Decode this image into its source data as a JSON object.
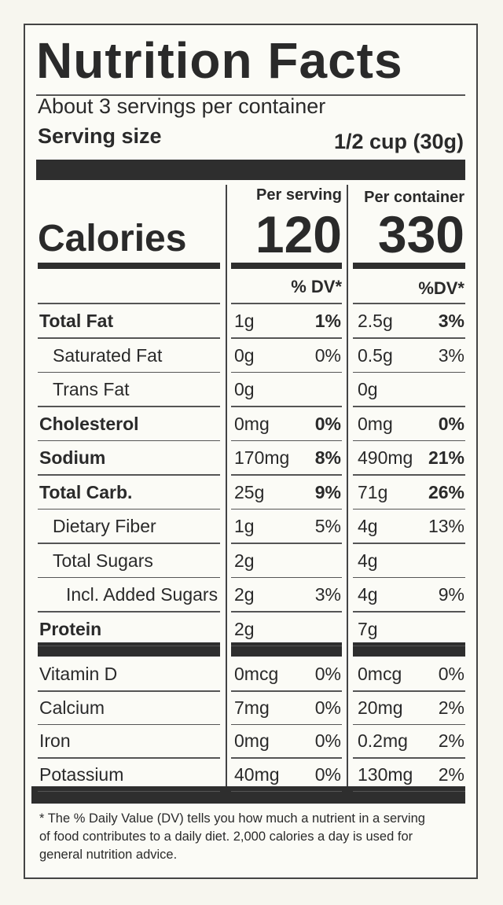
{
  "title": "Nutrition Facts",
  "servings_per_container": "About 3 servings per container",
  "serving_size": {
    "label": "Serving size",
    "value": "1/2 cup (30g)"
  },
  "columns": [
    "Per serving",
    "Per container"
  ],
  "calories": {
    "label": "Calories",
    "per_serving": "120",
    "per_container": "330"
  },
  "dv_headers": [
    "% DV*",
    "%DV*"
  ],
  "nutrients": [
    {
      "name": "Total Fat",
      "bold": true,
      "indent": 0,
      "serving": "1g",
      "serving_dv": "1%",
      "container": "2.5g",
      "container_dv": "3%"
    },
    {
      "name": "Saturated Fat",
      "bold": false,
      "indent": 1,
      "serving": "0g",
      "serving_dv": "0%",
      "container": "0.5g",
      "container_dv": "3%"
    },
    {
      "name": "Trans Fat",
      "bold": false,
      "indent": 1,
      "serving": "0g",
      "container": "0g"
    },
    {
      "name": "Cholesterol",
      "bold": true,
      "indent": 0,
      "serving": "0mg",
      "serving_dv": "0%",
      "container": "0mg",
      "container_dv": "0%"
    },
    {
      "name": "Sodium",
      "bold": true,
      "indent": 0,
      "serving": "170mg",
      "serving_dv": "8%",
      "container": "490mg",
      "container_dv": "21%"
    },
    {
      "name": "Total Carb.",
      "bold": true,
      "indent": 0,
      "serving": "25g",
      "serving_dv": "9%",
      "container": "71g",
      "container_dv": "26%"
    },
    {
      "name": "Dietary Fiber",
      "bold": false,
      "indent": 1,
      "serving": "1g",
      "serving_dv": "5%",
      "container": "4g",
      "container_dv": "13%"
    },
    {
      "name": "Total Sugars",
      "bold": false,
      "indent": 1,
      "serving": "2g",
      "container": "4g"
    },
    {
      "name": "Incl. Added Sugars",
      "bold": false,
      "indent": 2,
      "serving": "2g",
      "serving_dv": "3%",
      "container": "4g",
      "container_dv": "9%"
    },
    {
      "name": "Protein",
      "bold": true,
      "indent": 0,
      "serving": "2g",
      "container": "7g"
    }
  ],
  "vitamins": [
    {
      "name": "Vitamin D",
      "serving": "0mcg",
      "serving_dv": "0%",
      "container": "0mcg",
      "container_dv": "0%"
    },
    {
      "name": "Calcium",
      "serving": "7mg",
      "serving_dv": "0%",
      "container": "20mg",
      "container_dv": "2%"
    },
    {
      "name": "Iron",
      "serving": "0mg",
      "serving_dv": "0%",
      "container": "0.2mg",
      "container_dv": "2%"
    },
    {
      "name": "Potassium",
      "serving": "40mg",
      "serving_dv": "0%",
      "container": "130mg",
      "container_dv": "2%"
    }
  ],
  "footnote": "* The % Daily Value (DV) tells you how much a nutrient in a serving of food contributes to a daily diet. 2,000 calories a day is used for general nutrition advice."
}
